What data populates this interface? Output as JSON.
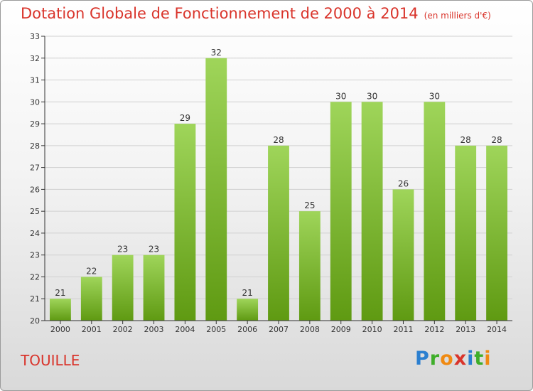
{
  "header": {
    "title": "Dotation Globale de Fonctionnement de 2000 à 2014",
    "unit_note": "(en milliers d'€)"
  },
  "footer": {
    "commune": "TOUILLE",
    "logo_text": "Proxiti"
  },
  "colors": {
    "title": "#d9342b",
    "bar_light": "#9fd55a",
    "bar_dark": "#5f9a12",
    "axis": "#333333",
    "grid": "#d0d0d0"
  },
  "chart_data": {
    "type": "bar",
    "title": "Dotation Globale de Fonctionnement de 2000 à 2014",
    "subtitle": "(en milliers d'€)",
    "xlabel": "",
    "ylabel": "",
    "categories": [
      "2000",
      "2001",
      "2002",
      "2003",
      "2004",
      "2005",
      "2006",
      "2007",
      "2008",
      "2009",
      "2010",
      "2011",
      "2012",
      "2013",
      "2014"
    ],
    "values": [
      21,
      22,
      23,
      23,
      29,
      32,
      21,
      28,
      25,
      30,
      30,
      26,
      30,
      28,
      28
    ],
    "ylim": [
      20,
      33
    ],
    "yticks": [
      20,
      21,
      22,
      23,
      24,
      25,
      26,
      27,
      28,
      29,
      30,
      31,
      32,
      33
    ],
    "grid": "horizontal",
    "legend": "none"
  }
}
